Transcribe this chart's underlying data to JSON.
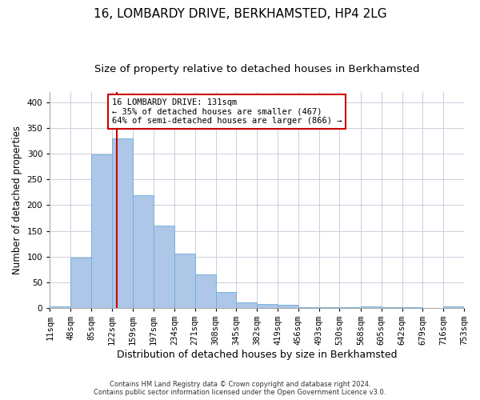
{
  "title": "16, LOMBARDY DRIVE, BERKHAMSTED, HP4 2LG",
  "subtitle": "Size of property relative to detached houses in Berkhamsted",
  "xlabel": "Distribution of detached houses by size in Berkhamsted",
  "ylabel": "Number of detached properties",
  "footer_line1": "Contains HM Land Registry data © Crown copyright and database right 2024.",
  "footer_line2": "Contains public sector information licensed under the Open Government Licence v3.0.",
  "bin_edges": [
    11,
    48,
    85,
    122,
    159,
    197,
    234,
    271,
    308,
    345,
    382,
    419,
    456,
    493,
    530,
    568,
    605,
    642,
    679,
    716,
    753
  ],
  "bar_heights": [
    3,
    98,
    298,
    330,
    219,
    160,
    106,
    65,
    31,
    10,
    8,
    6,
    1,
    1,
    1,
    3,
    1,
    1,
    0,
    3
  ],
  "bar_color": "#aec6e8",
  "bar_edge_color": "#6baed6",
  "property_size": 131,
  "vline_color": "#cc0000",
  "annotation_text": "16 LOMBARDY DRIVE: 131sqm\n← 35% of detached houses are smaller (467)\n64% of semi-detached houses are larger (866) →",
  "annotation_box_color": "white",
  "annotation_box_edge": "#cc0000",
  "ylim": [
    0,
    420
  ],
  "yticks": [
    0,
    50,
    100,
    150,
    200,
    250,
    300,
    350,
    400
  ],
  "grid_color": "#c8d0dc",
  "title_fontsize": 11,
  "subtitle_fontsize": 9.5,
  "xlabel_fontsize": 9,
  "ylabel_fontsize": 8.5,
  "tick_fontsize": 7.5,
  "footer_fontsize": 6,
  "annotation_fontsize": 7.5
}
